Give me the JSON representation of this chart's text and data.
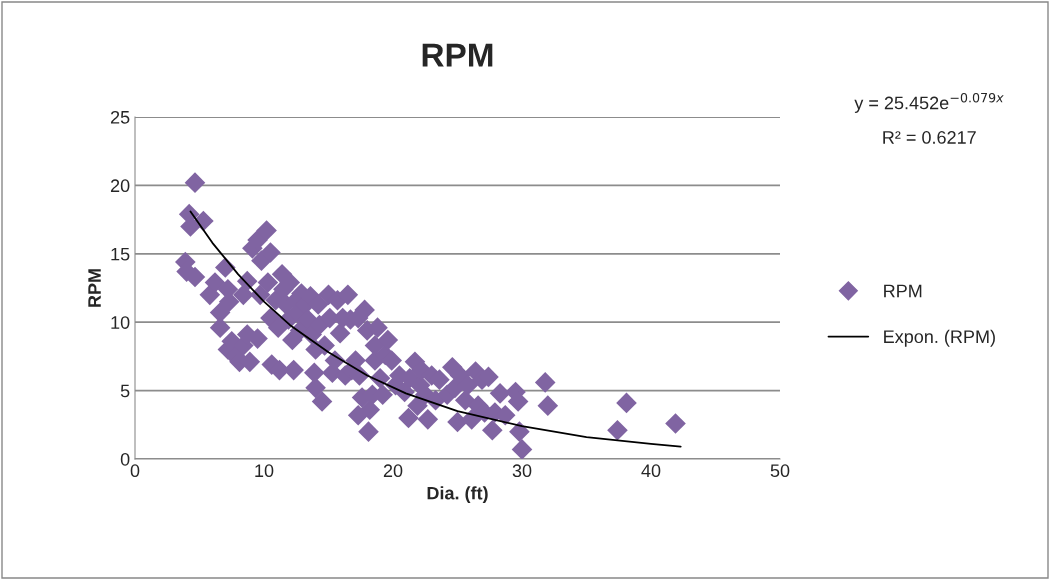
{
  "chart_data": {
    "type": "scatter",
    "title": "RPM",
    "xlabel": "Dia. (ft)",
    "ylabel": "RPM",
    "xlim": [
      0,
      50
    ],
    "xticks": [
      0,
      10,
      20,
      30,
      40,
      50
    ],
    "ylim": [
      0,
      25
    ],
    "yticks": [
      0,
      5,
      10,
      15,
      20,
      25
    ],
    "grid": "y",
    "legend": "right",
    "annotations": [
      "y = 25.452e$^{−0.079x}$",
      "R² = 0.6217"
    ],
    "series": [
      {
        "name": "RPM",
        "color": "#8064a2",
        "marker": "diamond",
        "x": [
          4.65,
          4.2,
          4.3,
          5.3,
          3.9,
          4.0,
          4.65,
          5.8,
          6.2,
          6.6,
          6.6,
          7.0,
          7.2,
          7.2,
          7.5,
          7.8,
          8.1,
          7.3,
          8.4,
          8.7,
          8.4,
          8.7,
          8.9,
          9.1,
          9.5,
          9.8,
          9.7,
          9.5,
          10.2,
          10.5,
          10.3,
          10.5,
          10.6,
          10.9,
          11.1,
          11.2,
          11.4,
          11.5,
          11.7,
          11.9,
          12.0,
          12.2,
          12.3,
          12.5,
          12.6,
          12.8,
          12.9,
          13.2,
          13.4,
          13.6,
          13.7,
          13.9,
          14.0,
          14.2,
          14.3,
          14.0,
          14.5,
          14.7,
          15.0,
          15.1,
          15.3,
          15.5,
          15.7,
          15.9,
          16.1,
          16.3,
          16.5,
          16.7,
          16.8,
          17.1,
          17.3,
          17.4,
          17.3,
          17.6,
          17.8,
          18.0,
          18.1,
          18.2,
          18.4,
          18.6,
          18.6,
          18.8,
          19.0,
          19.2,
          19.4,
          19.6,
          19.9,
          20.2,
          20.5,
          20.9,
          21.2,
          21.3,
          21.7,
          21.9,
          22.1,
          22.2,
          22.5,
          22.7,
          23.0,
          23.3,
          23.6,
          24.2,
          24.6,
          24.8,
          25.0,
          25.2,
          25.6,
          25.8,
          26.1,
          26.4,
          26.6,
          26.9,
          27.1,
          27.4,
          27.7,
          27.9,
          28.3,
          28.7,
          29.5,
          29.7,
          29.8,
          30.0,
          31.8,
          32.0,
          37.4,
          38.1,
          41.9
        ],
        "values": [
          20.2,
          17.9,
          17.0,
          17.4,
          14.4,
          13.7,
          13.3,
          12.0,
          12.9,
          10.7,
          9.6,
          14.0,
          12.4,
          8.0,
          8.6,
          7.5,
          7.1,
          11.5,
          12.0,
          13.0,
          8.3,
          9.1,
          7.1,
          15.4,
          16.0,
          14.5,
          12.0,
          8.8,
          16.7,
          15.1,
          12.9,
          10.3,
          6.9,
          11.6,
          9.6,
          6.5,
          13.5,
          12.4,
          11.3,
          10.2,
          12.9,
          8.7,
          6.5,
          11.6,
          10.7,
          9.4,
          12.1,
          11.3,
          10.2,
          11.9,
          9.1,
          6.3,
          8.0,
          11.3,
          9.8,
          5.2,
          4.2,
          8.3,
          12.0,
          10.3,
          6.3,
          7.2,
          11.6,
          9.2,
          10.3,
          6.1,
          12.0,
          10.2,
          6.5,
          7.2,
          10.3,
          6.1,
          3.2,
          4.5,
          10.9,
          9.4,
          2.0,
          3.6,
          4.7,
          8.3,
          7.2,
          9.6,
          5.9,
          4.7,
          7.6,
          8.7,
          7.2,
          5.4,
          6.1,
          4.9,
          3.0,
          5.9,
          7.1,
          3.9,
          5.4,
          6.5,
          4.7,
          2.9,
          6.1,
          4.3,
          5.8,
          4.7,
          6.7,
          5.2,
          2.7,
          6.1,
          4.3,
          5.4,
          2.9,
          6.4,
          3.9,
          5.8,
          3.4,
          6.0,
          2.1,
          3.4,
          4.8,
          3.2,
          4.9,
          4.2,
          2.0,
          0.7,
          5.6,
          3.9,
          2.1,
          4.1,
          2.6
        ]
      },
      {
        "name": "Expon. (RPM)",
        "type": "line",
        "color": "#000000",
        "line_style": "solid",
        "x": [
          4.3,
          6,
          8,
          10,
          12,
          15,
          18,
          21,
          25,
          30,
          35,
          40,
          42.3
        ],
        "values": [
          18.1,
          15.8,
          13.5,
          11.5,
          9.8,
          7.8,
          6.1,
          4.8,
          3.5,
          2.4,
          1.6,
          1.1,
          0.9
        ]
      }
    ]
  }
}
